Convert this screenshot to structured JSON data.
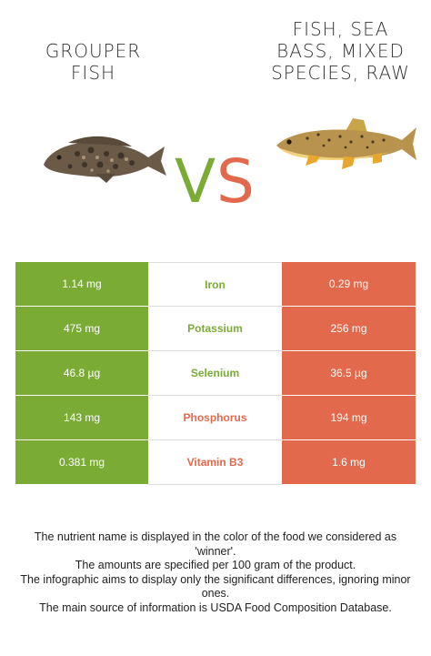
{
  "left_food": {
    "title_lines": [
      "GROUPER",
      "FISH"
    ],
    "color": "#7aab34",
    "icon": "grouper-fish-icon"
  },
  "right_food": {
    "title_lines": [
      "FISH, SEA",
      "BASS, MIXED",
      "SPECIES, RAW"
    ],
    "color": "#e2694c",
    "icon": "sea-bass-fish-icon"
  },
  "vs": {
    "v": "V",
    "s": "S"
  },
  "nutrients": [
    {
      "name": "Iron",
      "left": "1.14 mg",
      "right": "0.29 mg",
      "winner": "left"
    },
    {
      "name": "Potassium",
      "left": "475 mg",
      "right": "256 mg",
      "winner": "left"
    },
    {
      "name": "Selenium",
      "left": "46.8 µg",
      "right": "36.5 µg",
      "winner": "left"
    },
    {
      "name": "Phosphorus",
      "left": "143 mg",
      "right": "194 mg",
      "winner": "right"
    },
    {
      "name": "Vitamin B3",
      "left": "0.381 mg",
      "right": "1.6 mg",
      "winner": "right"
    }
  ],
  "footer": [
    "The nutrient name is displayed in the color of the food we considered as 'winner'.",
    "The amounts are specified per 100 gram of the product.",
    "The infographic aims to display only the significant differences, ignoring minor ones.",
    "The main source of information is USDA Food Composition Database."
  ]
}
